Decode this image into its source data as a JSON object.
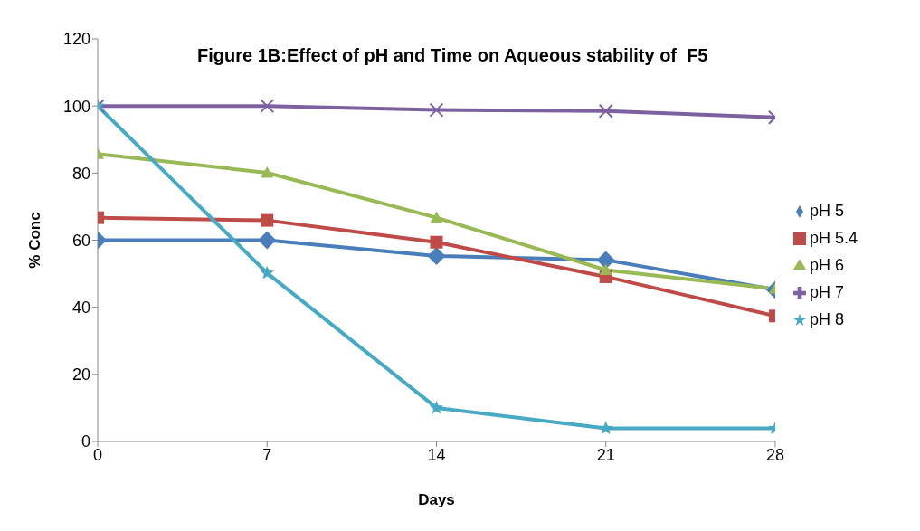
{
  "chart_data": {
    "type": "line",
    "title": "Figure 1B:Effect of pH and Time on Aqueous stability of  F5",
    "xlabel": "Days",
    "ylabel": "% Conc",
    "x": [
      0,
      7,
      14,
      21,
      28
    ],
    "series": [
      {
        "name": "pH 5",
        "color": "#4a7ebb",
        "marker": "diamond",
        "values": [
          60,
          60,
          55.3,
          54.1,
          45.2
        ]
      },
      {
        "name": "pH 5.4",
        "color": "#be4b48",
        "marker": "square",
        "values": [
          66.7,
          65.9,
          59.4,
          49.1,
          37.4
        ]
      },
      {
        "name": "pH 6",
        "color": "#98b954",
        "marker": "triangle",
        "values": [
          85.7,
          80.1,
          66.7,
          51.1,
          45.5
        ]
      },
      {
        "name": "pH 7",
        "color": "#7d60a0",
        "marker": "cross",
        "values": [
          100,
          100,
          98.8,
          98.5,
          96.6
        ]
      },
      {
        "name": "pH 8",
        "color": "#46aac5",
        "marker": "star",
        "values": [
          100,
          50.2,
          10,
          3.9,
          3.9
        ]
      }
    ],
    "xlim": [
      0,
      28
    ],
    "xticks": [
      0,
      7,
      14,
      21,
      28
    ],
    "ylim": [
      0,
      120
    ],
    "yticks": [
      0,
      20,
      40,
      60,
      80,
      100,
      120
    ],
    "grid": false,
    "legend": "right",
    "line_style": "solid"
  }
}
